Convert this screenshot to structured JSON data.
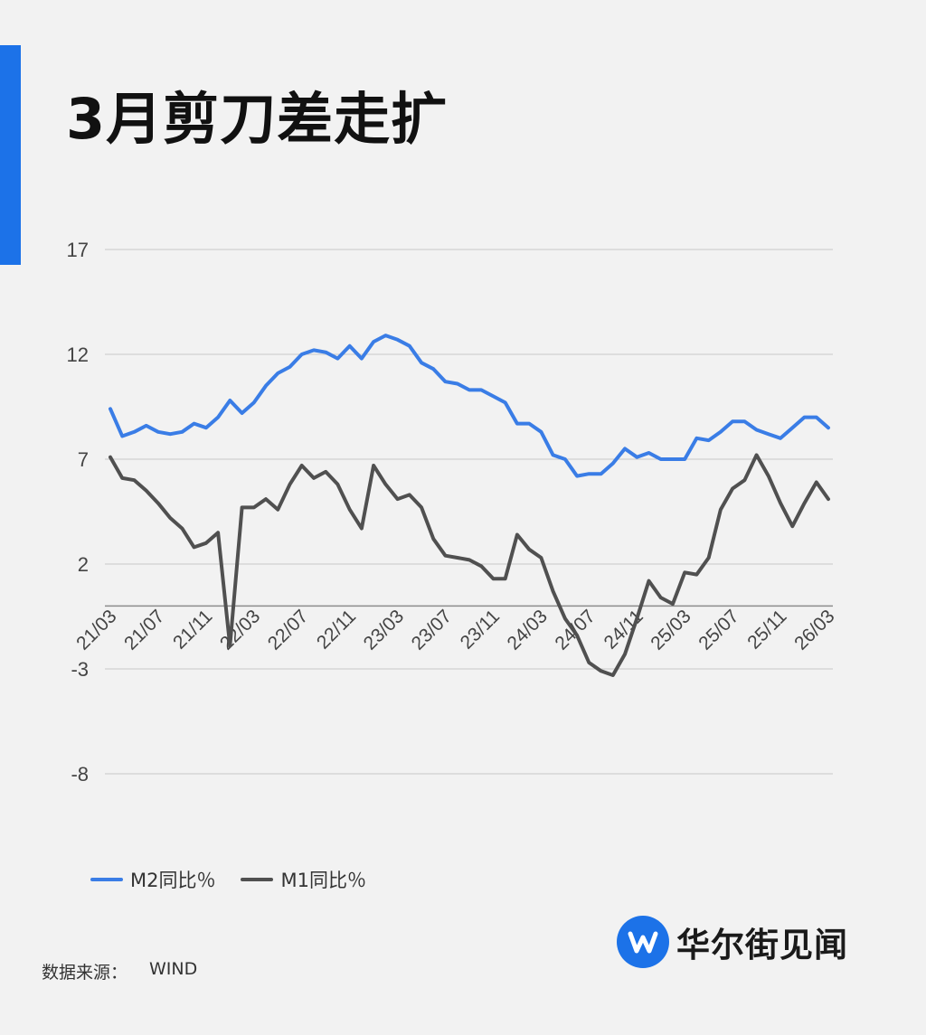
{
  "title": "3月剪刀差走扩",
  "source": {
    "label": "数据来源：",
    "value": "WIND"
  },
  "logo": {
    "text": "华尔街见闻",
    "icon": "w-logo-icon"
  },
  "colors": {
    "accent": "#1c72e8",
    "m2": "#3a7de6",
    "m1": "#505050",
    "grid": "#c8c8c8",
    "baseline": "#8c8c8c"
  },
  "chart_data": {
    "type": "line",
    "title": "",
    "xlabel": "",
    "ylabel": "",
    "ylim": [
      -8,
      17
    ],
    "yticks": [
      17,
      12,
      7,
      2,
      -3,
      -8
    ],
    "grid": true,
    "legend_position": "bottom-left",
    "x": [
      "21/03",
      "21/04",
      "21/05",
      "21/06",
      "21/07",
      "21/08",
      "21/09",
      "21/10",
      "21/11",
      "21/12",
      "22/01",
      "22/02",
      "22/03",
      "22/04",
      "22/05",
      "22/06",
      "22/07",
      "22/08",
      "22/09",
      "22/10",
      "22/11",
      "22/12",
      "23/01",
      "23/02",
      "23/03",
      "23/04",
      "23/05",
      "23/06",
      "23/07",
      "23/08",
      "23/09",
      "23/10",
      "23/11",
      "23/12",
      "24/01",
      "24/02",
      "24/03",
      "24/04",
      "24/05",
      "24/06",
      "24/07",
      "24/08",
      "24/09",
      "24/10",
      "24/11",
      "24/12",
      "25/01",
      "25/02",
      "25/03",
      "25/04",
      "25/05",
      "25/06",
      "25/07",
      "25/08",
      "25/09",
      "25/10",
      "25/11",
      "25/12",
      "26/01",
      "26/02",
      "26/03"
    ],
    "xtick_labels": [
      "21/03",
      "21/07",
      "21/11",
      "22/03",
      "22/07",
      "22/11",
      "23/03",
      "23/07",
      "23/11",
      "24/03",
      "24/07",
      "24/11",
      "25/03",
      "25/07",
      "25/11",
      "26/03"
    ],
    "series": [
      {
        "name": "M2同比％",
        "values": [
          9.4,
          8.1,
          8.3,
          8.6,
          8.3,
          8.2,
          8.3,
          8.7,
          8.5,
          9.0,
          9.8,
          9.2,
          9.7,
          10.5,
          11.1,
          11.4,
          12.0,
          12.2,
          12.1,
          11.8,
          12.4,
          11.8,
          12.6,
          12.9,
          12.7,
          12.4,
          11.6,
          11.3,
          10.7,
          10.6,
          10.3,
          10.3,
          10.0,
          9.7,
          8.7,
          8.7,
          8.3,
          7.2,
          7.0,
          6.2,
          6.3,
          6.3,
          6.8,
          7.5,
          7.1,
          7.3,
          7.0,
          7.0,
          7.0,
          8.0,
          7.9,
          8.3,
          8.8,
          8.8,
          8.4,
          8.2,
          8.0,
          8.5,
          9.0,
          9.0,
          8.5
        ]
      },
      {
        "name": "M1同比％",
        "values": [
          7.1,
          6.1,
          6.0,
          5.5,
          4.9,
          4.2,
          3.7,
          2.8,
          3.0,
          3.5,
          -1.9,
          4.7,
          4.7,
          5.1,
          4.6,
          5.8,
          6.7,
          6.1,
          6.4,
          5.8,
          4.6,
          3.7,
          6.7,
          5.8,
          5.1,
          5.3,
          4.7,
          3.2,
          2.4,
          2.3,
          2.2,
          1.9,
          1.3,
          1.3,
          3.4,
          2.7,
          2.3,
          0.7,
          -0.6,
          -1.4,
          -2.7,
          -3.1,
          -3.3,
          -2.3,
          -0.6,
          1.2,
          0.4,
          0.1,
          1.6,
          1.5,
          2.3,
          4.6,
          5.6,
          6.0,
          7.2,
          6.2,
          4.9,
          3.8,
          4.9,
          5.9,
          5.1
        ]
      }
    ]
  }
}
